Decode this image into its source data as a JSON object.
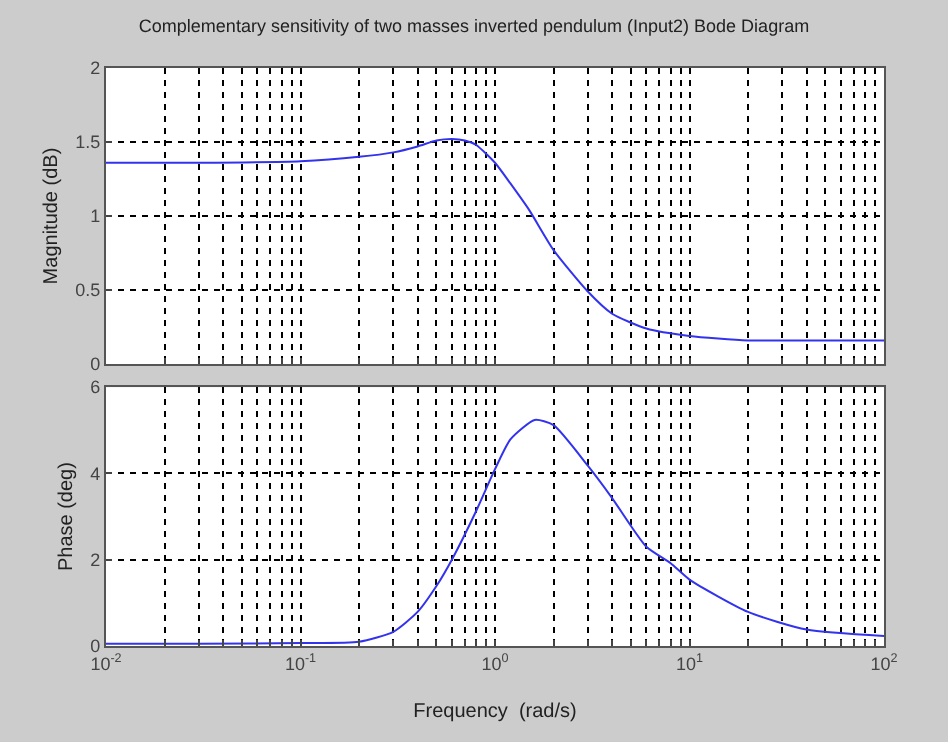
{
  "chart_data": [
    {
      "type": "line",
      "title": "Complementary sensitivity of two masses inverted pendulum (Input2) Bode Diagram",
      "ylabel": "Magnitude (dB)",
      "log": "x",
      "grid": true,
      "line_style": "solid",
      "tick_labels": "y",
      "xlim": [
        0.01,
        100
      ],
      "ylim": [
        0,
        2
      ],
      "yticks": [
        0,
        0.5,
        1,
        1.5,
        2
      ],
      "xticks": [
        {
          "value": 0.01,
          "label": "10$^{-2}$"
        },
        {
          "value": 0.02,
          "label": null
        },
        {
          "value": 0.03,
          "label": null
        },
        {
          "value": 0.04,
          "label": null
        },
        {
          "value": 0.05,
          "label": null
        },
        {
          "value": 0.06,
          "label": null
        },
        {
          "value": 0.07,
          "label": null
        },
        {
          "value": 0.08,
          "label": null
        },
        {
          "value": 0.09,
          "label": null
        },
        {
          "value": 0.1,
          "label": "10$^{-1}$"
        },
        {
          "value": 0.2,
          "label": null
        },
        {
          "value": 0.3,
          "label": null
        },
        {
          "value": 0.4,
          "label": null
        },
        {
          "value": 0.5,
          "label": null
        },
        {
          "value": 0.6,
          "label": null
        },
        {
          "value": 0.7,
          "label": null
        },
        {
          "value": 0.8,
          "label": null
        },
        {
          "value": 0.9,
          "label": null
        },
        {
          "value": 1,
          "label": "10$^{0}$"
        },
        {
          "value": 2,
          "label": null
        },
        {
          "value": 3,
          "label": null
        },
        {
          "value": 4,
          "label": null
        },
        {
          "value": 5,
          "label": null
        },
        {
          "value": 6,
          "label": null
        },
        {
          "value": 7,
          "label": null
        },
        {
          "value": 8,
          "label": null
        },
        {
          "value": 9,
          "label": null
        },
        {
          "value": 10,
          "label": "10$^{1}$"
        },
        {
          "value": 20,
          "label": null
        },
        {
          "value": 30,
          "label": null
        },
        {
          "value": 40,
          "label": null
        },
        {
          "value": 50,
          "label": null
        },
        {
          "value": 60,
          "label": null
        },
        {
          "value": 70,
          "label": null
        },
        {
          "value": 80,
          "label": null
        },
        {
          "value": 90,
          "label": null
        },
        {
          "value": 100,
          "label": "10$^{2}$"
        }
      ],
      "series": [
        {
          "color": "#3333ee",
          "x": [
            0.01,
            0.03,
            0.1,
            0.2,
            0.3,
            0.4,
            0.5,
            0.6,
            0.7,
            0.8,
            1,
            1.2,
            1.5,
            2,
            3,
            4,
            6,
            10,
            20,
            50,
            100
          ],
          "values": [
            1.36,
            1.36,
            1.37,
            1.4,
            1.43,
            1.47,
            1.51,
            1.52,
            1.51,
            1.48,
            1.36,
            1.22,
            1.04,
            0.77,
            0.49,
            0.34,
            0.24,
            0.19,
            0.16,
            0.16,
            0.16
          ]
        }
      ]
    },
    {
      "type": "line",
      "xlabel": "Frequency  (rad/s)",
      "ylabel": "Phase (deg)",
      "log": "x",
      "grid": true,
      "line_style": "solid",
      "xlim": [
        0.01,
        100
      ],
      "ylim": [
        0,
        6
      ],
      "yticks": [
        0,
        2,
        4,
        6
      ],
      "xticks": [
        {
          "value": 0.01,
          "label": "10$^{-2}$"
        },
        {
          "value": 0.02,
          "label": null
        },
        {
          "value": 0.03,
          "label": null
        },
        {
          "value": 0.04,
          "label": null
        },
        {
          "value": 0.05,
          "label": null
        },
        {
          "value": 0.06,
          "label": null
        },
        {
          "value": 0.07,
          "label": null
        },
        {
          "value": 0.08,
          "label": null
        },
        {
          "value": 0.09,
          "label": null
        },
        {
          "value": 0.1,
          "label": "10$^{-1}$"
        },
        {
          "value": 0.2,
          "label": null
        },
        {
          "value": 0.3,
          "label": null
        },
        {
          "value": 0.4,
          "label": null
        },
        {
          "value": 0.5,
          "label": null
        },
        {
          "value": 0.6,
          "label": null
        },
        {
          "value": 0.7,
          "label": null
        },
        {
          "value": 0.8,
          "label": null
        },
        {
          "value": 0.9,
          "label": null
        },
        {
          "value": 1,
          "label": "10$^{0}$"
        },
        {
          "value": 2,
          "label": null
        },
        {
          "value": 3,
          "label": null
        },
        {
          "value": 4,
          "label": null
        },
        {
          "value": 5,
          "label": null
        },
        {
          "value": 6,
          "label": null
        },
        {
          "value": 7,
          "label": null
        },
        {
          "value": 8,
          "label": null
        },
        {
          "value": 9,
          "label": null
        },
        {
          "value": 10,
          "label": "10$^{1}$"
        },
        {
          "value": 20,
          "label": null
        },
        {
          "value": 30,
          "label": null
        },
        {
          "value": 40,
          "label": null
        },
        {
          "value": 50,
          "label": null
        },
        {
          "value": 60,
          "label": null
        },
        {
          "value": 70,
          "label": null
        },
        {
          "value": 80,
          "label": null
        },
        {
          "value": 90,
          "label": null
        },
        {
          "value": 100,
          "label": "10$^{2}$"
        }
      ],
      "series": [
        {
          "color": "#3333ee",
          "x": [
            0.01,
            0.03,
            0.1,
            0.2,
            0.3,
            0.4,
            0.5,
            0.6,
            0.8,
            1,
            1.2,
            1.6,
            2,
            3,
            4,
            6,
            8,
            10,
            20,
            40,
            100
          ],
          "values": [
            0.05,
            0.05,
            0.07,
            0.1,
            0.33,
            0.79,
            1.39,
            2.0,
            3.13,
            4.1,
            4.79,
            5.24,
            5.12,
            4.18,
            3.43,
            2.3,
            1.92,
            1.54,
            0.79,
            0.38,
            0.23
          ]
        }
      ]
    }
  ]
}
